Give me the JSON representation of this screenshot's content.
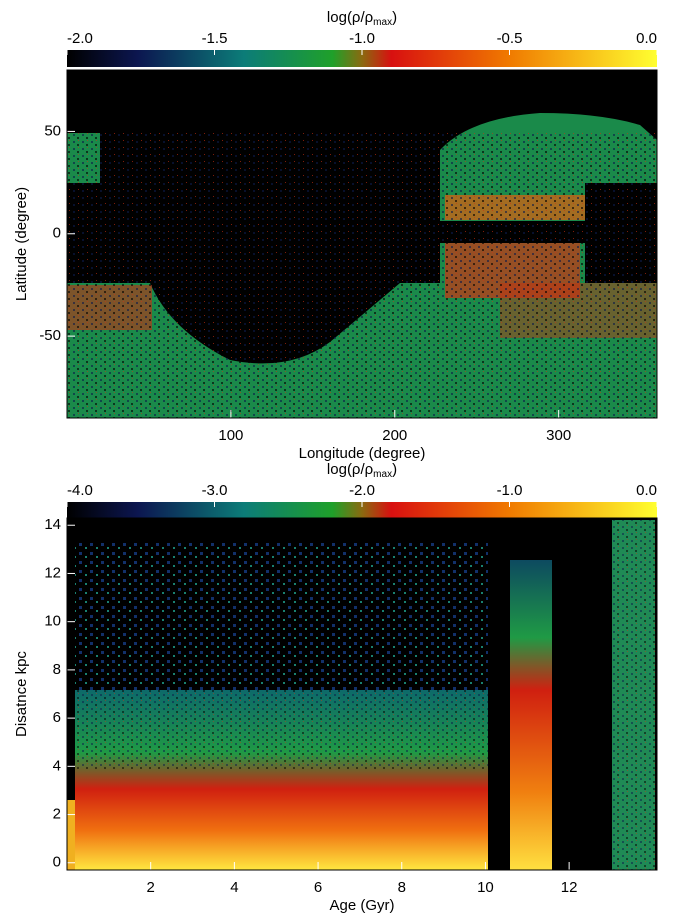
{
  "chart_data": [
    {
      "type": "heatmap",
      "colorbar": {
        "label_parts": [
          "log(ρ/ρ",
          "max",
          ")"
        ],
        "clim": [
          -2,
          0
        ],
        "ticks": [
          {
            "value": -2,
            "label": "-2.0"
          },
          {
            "value": -1.5,
            "label": "-1.5"
          },
          {
            "value": -1,
            "label": "-1.0"
          },
          {
            "value": -0.5,
            "label": "-0.5"
          },
          {
            "value": 0,
            "label": "0.0"
          }
        ]
      },
      "x_label": "Longitude (degree)",
      "y_label": "Latitude (degree)",
      "xlim": [
        0,
        360
      ],
      "xticks": [
        100,
        200,
        300
      ],
      "ylim": [
        -90,
        80
      ],
      "yticks": [
        -50,
        0,
        50
      ]
    },
    {
      "type": "heatmap",
      "colorbar": {
        "label_parts": [
          "log(ρ/ρ",
          "max",
          ")"
        ],
        "clim": [
          -4,
          0
        ],
        "ticks": [
          {
            "value": -4,
            "label": "-4.0"
          },
          {
            "value": -3,
            "label": "-3.0"
          },
          {
            "value": -2,
            "label": "-2.0"
          },
          {
            "value": -1,
            "label": "-1.0"
          },
          {
            "value": 0,
            "label": "0.0"
          }
        ]
      },
      "x_label": "Age (Gyr)",
      "y_label": "Disatnce kpc",
      "xlim": [
        0,
        14.1
      ],
      "xticks": [
        2,
        4,
        6,
        8,
        10,
        12
      ],
      "ylim": [
        -0.3,
        14.3
      ],
      "yticks": [
        0,
        2,
        4,
        6,
        8,
        10,
        12,
        14
      ]
    }
  ]
}
